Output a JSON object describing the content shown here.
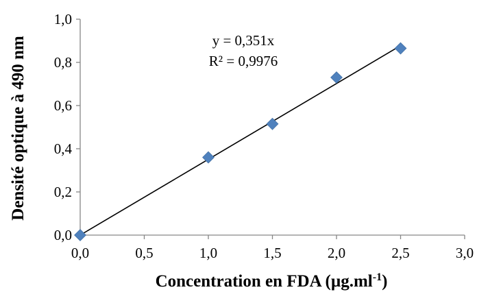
{
  "chart_data": {
    "type": "scatter",
    "title": "",
    "xlabel": "Concentration en FDA (µg.ml-1)",
    "xlabel_main": "Concentration en FDA (µg.ml",
    "xlabel_sup": "-1",
    "xlabel_end": ")",
    "ylabel": "Densité optique à 490 nm",
    "xlim": [
      0,
      3
    ],
    "ylim": [
      0,
      1
    ],
    "x_ticks": [
      "0,0",
      "0,5",
      "1,0",
      "1,5",
      "2,0",
      "2,5",
      "3,0"
    ],
    "y_ticks": [
      "0,0",
      "0,2",
      "0,4",
      "0,6",
      "0,8",
      "1,0"
    ],
    "x_tick_values": [
      0,
      0.5,
      1,
      1.5,
      2,
      2.5,
      3
    ],
    "y_tick_values": [
      0,
      0.2,
      0.4,
      0.6,
      0.8,
      1.0
    ],
    "grid": false,
    "series": [
      {
        "x": [
          0,
          1,
          1.5,
          2,
          2.5
        ],
        "values": [
          0.0,
          0.36,
          0.515,
          0.73,
          0.865
        ],
        "color": "#4f81bd",
        "marker": "diamond"
      }
    ],
    "trendline": {
      "slope": 0.351,
      "intercept": 0,
      "x_range": [
        0,
        2.5
      ],
      "color": "#000000"
    },
    "annotations": [
      "y = 0,351x",
      "R² = 0,9976"
    ]
  }
}
